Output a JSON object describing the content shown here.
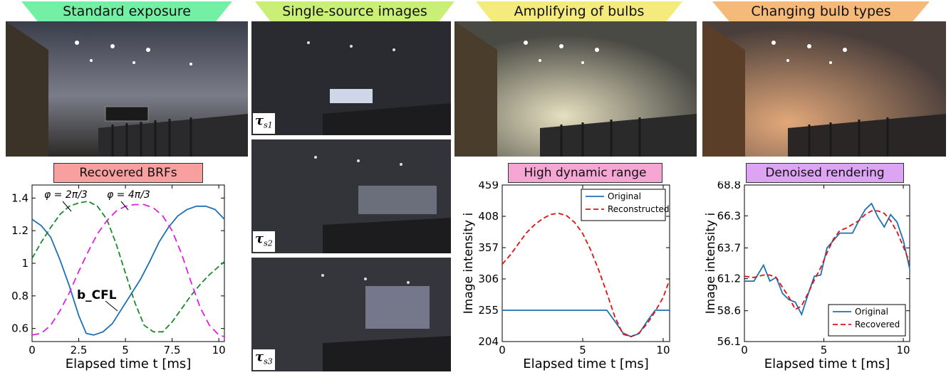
{
  "banners": {
    "standard": {
      "label": "Standard exposure",
      "color": "#74f0a4"
    },
    "single": {
      "label": "Single-source images",
      "color": "#c9ef77"
    },
    "amplify": {
      "label": "Amplifying of bulbs",
      "color": "#f4eb7c"
    },
    "changing": {
      "label": "Changing bulb types",
      "color": "#f5b97a"
    }
  },
  "tags": {
    "brf": {
      "label": "Recovered BRFs",
      "color": "#f8a0a0"
    },
    "hdr": {
      "label": "High dynamic range",
      "color": "#f6a6d2"
    },
    "denoise": {
      "label": "Denoised rendering",
      "color": "#dca4f2"
    }
  },
  "tau_labels": [
    {
      "symbol": "τ",
      "sub": "s",
      "subsub": "1"
    },
    {
      "symbol": "τ",
      "sub": "s",
      "subsub": "2"
    },
    {
      "symbol": "τ",
      "sub": "s",
      "subsub": "3"
    }
  ],
  "chart_data": [
    {
      "type": "line",
      "xlabel": "Elapsed time t [ms]",
      "ylabel": "",
      "xlim": [
        0,
        10.3
      ],
      "ylim": [
        0.52,
        1.48
      ],
      "xticks": [
        "0",
        "2.5",
        "5",
        "7.5",
        "10"
      ],
      "xtick_values": [
        0,
        2.5,
        5,
        7.5,
        10
      ],
      "yticks": [
        "0.6",
        "0.8",
        "1",
        "1.2",
        "1.4"
      ],
      "ytick_values": [
        0.6,
        0.8,
        1.0,
        1.2,
        1.4
      ],
      "annotations": [
        "φ = 2π/3",
        "φ = 4π/3",
        "b_CFL"
      ],
      "series": [
        {
          "color": "#1f6fb4",
          "dash": "solid",
          "x": [
            0,
            0.5,
            1.0,
            1.5,
            2.0,
            2.5,
            2.9,
            3.3,
            3.8,
            4.3,
            4.8,
            5.3,
            5.8,
            6.3,
            6.8,
            7.3,
            7.8,
            8.3,
            8.8,
            9.3,
            9.8,
            10.3
          ],
          "y": [
            1.27,
            1.23,
            1.16,
            1.02,
            0.86,
            0.68,
            0.57,
            0.56,
            0.58,
            0.63,
            0.72,
            0.81,
            0.9,
            1.01,
            1.13,
            1.22,
            1.29,
            1.33,
            1.35,
            1.35,
            1.33,
            1.27
          ]
        },
        {
          "color": "#1a8a2a",
          "dash": "8,4",
          "x": [
            0,
            0.5,
            1.0,
            1.5,
            2.0,
            2.5,
            3.0,
            3.5,
            4.0,
            4.5,
            5.0,
            5.5,
            6.0,
            6.5,
            7.0,
            7.5,
            8.0,
            8.5,
            9.0,
            9.5,
            10.0,
            10.3
          ],
          "y": [
            1.03,
            1.13,
            1.22,
            1.3,
            1.35,
            1.37,
            1.38,
            1.35,
            1.27,
            1.12,
            0.94,
            0.76,
            0.62,
            0.58,
            0.58,
            0.64,
            0.72,
            0.8,
            0.87,
            0.93,
            0.98,
            1.01
          ]
        },
        {
          "color": "#e020e0",
          "dash": "10,6",
          "x": [
            0,
            0.5,
            1.0,
            1.5,
            2.0,
            2.5,
            3.0,
            3.5,
            4.0,
            4.5,
            5.0,
            5.5,
            6.0,
            6.5,
            7.0,
            7.5,
            8.0,
            8.5,
            9.0,
            9.5,
            10.0,
            10.3
          ],
          "y": [
            0.56,
            0.57,
            0.62,
            0.71,
            0.82,
            0.95,
            1.07,
            1.18,
            1.26,
            1.32,
            1.35,
            1.36,
            1.36,
            1.34,
            1.29,
            1.2,
            1.06,
            0.89,
            0.73,
            0.62,
            0.56,
            0.55
          ]
        }
      ]
    },
    {
      "type": "line",
      "xlabel": "Elapsed time t [ms]",
      "ylabel": "Image intensity i",
      "xlim": [
        0,
        10.4
      ],
      "ylim": [
        204,
        459
      ],
      "xticks": [
        "0",
        "5",
        "10"
      ],
      "xtick_values": [
        0,
        5,
        10
      ],
      "yticks": [
        "204",
        "255",
        "306",
        "357",
        "408",
        "459"
      ],
      "ytick_values": [
        204,
        255,
        306,
        357,
        408,
        459
      ],
      "legend_position": "top-right",
      "series": [
        {
          "name": "Original",
          "color": "#1f6fb4",
          "dash": "solid",
          "x": [
            0,
            6.5,
            7.0,
            7.5,
            8.0,
            8.5,
            9.0,
            9.5,
            10.4
          ],
          "y": [
            255,
            255,
            237,
            218,
            212,
            217,
            237,
            255,
            255
          ]
        },
        {
          "name": "Reconstructed",
          "color": "#e01010",
          "dash": "7,4",
          "x": [
            0,
            0.5,
            1.0,
            1.5,
            2.0,
            2.5,
            3.0,
            3.5,
            4.0,
            4.5,
            5.0,
            5.5,
            6.0,
            6.5,
            7.0,
            7.5,
            8.0,
            8.5,
            9.0,
            9.5,
            10.0,
            10.4
          ],
          "y": [
            330,
            345,
            363,
            381,
            394,
            404,
            411,
            413,
            409,
            398,
            380,
            353,
            320,
            283,
            244,
            216,
            212,
            218,
            233,
            253,
            276,
            305
          ]
        }
      ]
    },
    {
      "type": "line",
      "xlabel": "Elapsed time t [ms]",
      "ylabel": "Image intensity i",
      "xlim": [
        0,
        10.4
      ],
      "ylim": [
        56.1,
        68.8
      ],
      "xticks": [
        "0",
        "5",
        "10"
      ],
      "xtick_values": [
        0,
        5,
        10
      ],
      "yticks": [
        "56.1",
        "58.6",
        "61.2",
        "63.7",
        "66.3",
        "68.8"
      ],
      "ytick_values": [
        56.1,
        58.6,
        61.2,
        63.7,
        66.3,
        68.8
      ],
      "legend_position": "bottom-right",
      "series": [
        {
          "name": "Original",
          "color": "#1f6fb4",
          "dash": "solid",
          "x": [
            0,
            0.6,
            1.2,
            1.6,
            2.0,
            2.4,
            2.8,
            3.2,
            3.6,
            4.0,
            4.4,
            4.8,
            5.2,
            5.6,
            6.0,
            6.4,
            6.8,
            7.2,
            7.6,
            8.0,
            8.4,
            8.8,
            9.2,
            9.6,
            10.0,
            10.4
          ],
          "y": [
            61.0,
            61.0,
            62.3,
            61.0,
            61.3,
            60.0,
            59.5,
            59.3,
            58.3,
            59.9,
            61.4,
            61.5,
            63.7,
            64.3,
            64.9,
            64.9,
            64.9,
            65.9,
            66.8,
            67.3,
            66.2,
            65.4,
            66.4,
            65.8,
            64.3,
            62.0
          ]
        },
        {
          "name": "Recovered",
          "color": "#e01010",
          "dash": "7,4",
          "x": [
            0,
            0.6,
            1.2,
            1.6,
            2.0,
            2.4,
            2.8,
            3.2,
            3.6,
            4.0,
            4.4,
            4.8,
            5.2,
            5.6,
            6.0,
            6.4,
            6.8,
            7.2,
            7.6,
            8.0,
            8.4,
            8.8,
            9.2,
            9.6,
            10.0,
            10.4
          ],
          "y": [
            61.4,
            61.3,
            61.5,
            61.5,
            61.3,
            60.5,
            59.7,
            58.7,
            59.0,
            60.0,
            61.1,
            62.1,
            63.3,
            64.4,
            65.1,
            65.3,
            65.6,
            65.9,
            66.4,
            66.7,
            66.7,
            66.5,
            65.9,
            65.0,
            63.8,
            62.5
          ]
        }
      ]
    }
  ]
}
